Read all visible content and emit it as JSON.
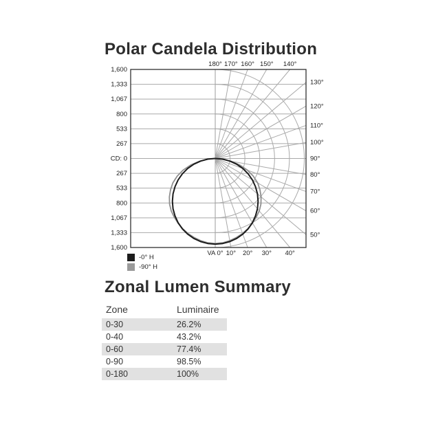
{
  "polar_title": "Polar Candela Distribution",
  "chart_data": {
    "type": "line",
    "subtype": "polar-candela-distribution",
    "title": "Polar Candela Distribution",
    "units": "candela (cd)",
    "radial_axis": {
      "max": 1600,
      "step": 267,
      "tick_labels": [
        "1,600",
        "1,333",
        "1,067",
        "800",
        "533",
        "267",
        "CD: 0",
        "267",
        "533",
        "800",
        "1,067",
        "1,333",
        "1,600"
      ]
    },
    "angle_axis": {
      "top_labels": [
        {
          "angle": 180,
          "label": "180°"
        },
        {
          "angle": 170,
          "label": "170°"
        },
        {
          "angle": 160,
          "label": "160°"
        },
        {
          "angle": 150,
          "label": "150°"
        },
        {
          "angle": 140,
          "label": "140°"
        }
      ],
      "right_labels": [
        {
          "angle": 130,
          "label": "130°"
        },
        {
          "angle": 120,
          "label": "120°"
        },
        {
          "angle": 110,
          "label": "110°"
        },
        {
          "angle": 100,
          "label": "100°"
        },
        {
          "angle": 90,
          "label": "90°"
        },
        {
          "angle": 80,
          "label": "80°"
        },
        {
          "angle": 70,
          "label": "70°"
        },
        {
          "angle": 60,
          "label": "60°"
        },
        {
          "angle": 50,
          "label": "50°"
        }
      ],
      "bottom_labels": [
        {
          "angle": 0,
          "label": "VA 0°"
        },
        {
          "angle": 10,
          "label": "10°"
        },
        {
          "angle": 20,
          "label": "20°"
        },
        {
          "angle": 30,
          "label": "30°"
        },
        {
          "angle": 40,
          "label": "40°"
        }
      ]
    },
    "grid": {
      "radial_line_step_deg": 10,
      "arc_count": 6,
      "color": "#a9a9a9",
      "box_color": "#2f2f2f"
    },
    "angles_deg": [
      0,
      5,
      10,
      15,
      20,
      25,
      30,
      35,
      40,
      45,
      50,
      55,
      60,
      65,
      70,
      75,
      80,
      85,
      90
    ],
    "series": [
      {
        "name": "-0° H",
        "color": "#1c1c1c",
        "width": 2,
        "values": [
          1540,
          1534,
          1517,
          1488,
          1447,
          1396,
          1334,
          1261,
          1180,
          1089,
          990,
          883,
          770,
          651,
          527,
          398,
          267,
          134,
          0
        ]
      },
      {
        "name": "-90° H",
        "color": "#8f8f8f",
        "width": 1.8,
        "values": [
          1530,
          1522,
          1500,
          1470,
          1435,
          1390,
          1340,
          1285,
          1230,
          1160,
          1075,
          980,
          880,
          755,
          615,
          455,
          285,
          125,
          0
        ]
      }
    ],
    "legend": [
      {
        "label": "-0° H",
        "color": "#1c1c1c"
      },
      {
        "label": "-90° H",
        "color": "#9a9a9a"
      }
    ]
  },
  "summary": {
    "title": "Zonal Lumen Summary",
    "columns": {
      "zone": "Zone",
      "luminaire": "Luminaire"
    },
    "rows": [
      {
        "zone": "0-30",
        "luminaire": "26.2%"
      },
      {
        "zone": "0-40",
        "luminaire": "43.2%"
      },
      {
        "zone": "0-60",
        "luminaire": "77.4%"
      },
      {
        "zone": "0-90",
        "luminaire": "98.5%"
      },
      {
        "zone": "0-180",
        "luminaire": "100%"
      }
    ],
    "row_stripe_color": "#e1e1e1"
  }
}
